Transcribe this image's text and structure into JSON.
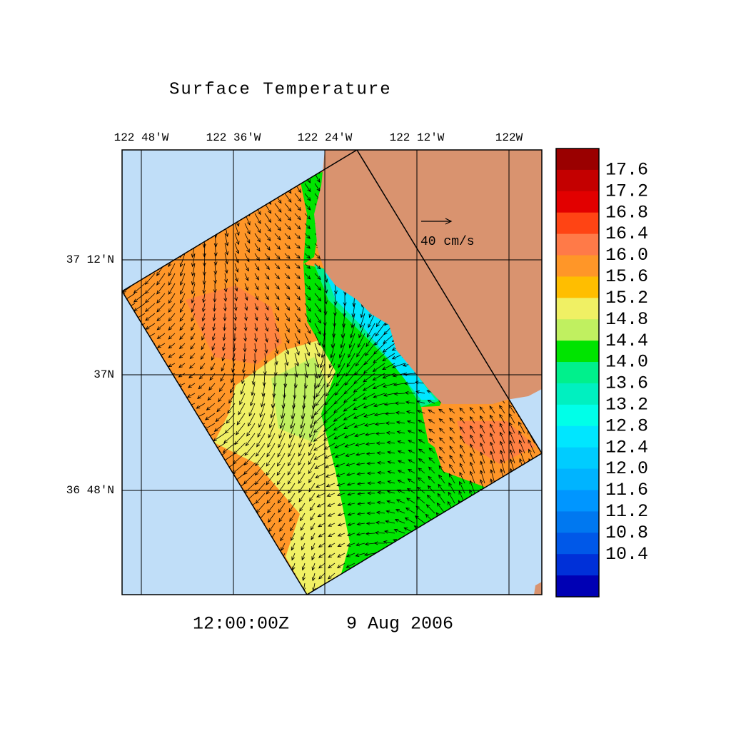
{
  "title": "Surface Temperature",
  "lon_labels": [
    "122 48'W",
    "122 36'W",
    "122 24'W",
    "122 12'W",
    "122W"
  ],
  "lat_labels": [
    "37 12'N",
    "37N",
    "36 48'N"
  ],
  "vector_scale": "40 cm/s",
  "time": "12:00:00Z",
  "date": "9 Aug 2006",
  "colorbar": {
    "labels": [
      "17.6",
      "17.2",
      "16.8",
      "16.4",
      "16.0",
      "15.6",
      "15.2",
      "14.8",
      "14.4",
      "14.0",
      "13.6",
      "13.2",
      "12.8",
      "12.4",
      "12.0",
      "11.6",
      "11.2",
      "10.8",
      "10.4"
    ],
    "colors": [
      "#9a0000",
      "#c40000",
      "#e20000",
      "#ff4414",
      "#ff7a48",
      "#ff9628",
      "#ffbe00",
      "#f0f064",
      "#c0f060",
      "#00e400",
      "#00f08c",
      "#00f0c0",
      "#00ffe8",
      "#00e6ff",
      "#00ccff",
      "#00b4ff",
      "#0096ff",
      "#0078f0",
      "#0058e8",
      "#0030d8",
      "#0000b4"
    ]
  }
}
